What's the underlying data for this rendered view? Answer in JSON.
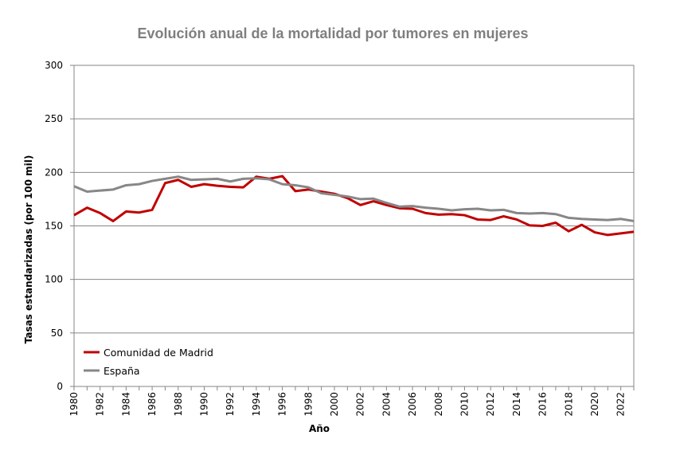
{
  "chart_data": {
    "type": "line",
    "title": "Evolución anual de la mortalidad por tumores en mujeres",
    "xlabel": "Año",
    "ylabel": "Tasas estandarizadas (por 100 mil)",
    "ylim": [
      0,
      300
    ],
    "yticks": [
      "0",
      "50",
      "100",
      "150",
      "200",
      "250",
      "300"
    ],
    "xlim": [
      1980,
      2023
    ],
    "xticks": [
      "1980",
      "1982",
      "1984",
      "1986",
      "1988",
      "1990",
      "1992",
      "1994",
      "1996",
      "1998",
      "2000",
      "2002",
      "2004",
      "2006",
      "2008",
      "2010",
      "2012",
      "2014",
      "2016",
      "2018",
      "2020",
      "2022"
    ],
    "grid": "horizontal",
    "legend_position": "bottom-left",
    "x": [
      1980,
      1981,
      1982,
      1983,
      1984,
      1985,
      1986,
      1987,
      1988,
      1989,
      1990,
      1991,
      1992,
      1993,
      1994,
      1995,
      1996,
      1997,
      1998,
      1999,
      2000,
      2001,
      2002,
      2003,
      2004,
      2005,
      2006,
      2007,
      2008,
      2009,
      2010,
      2011,
      2012,
      2013,
      2014,
      2015,
      2016,
      2017,
      2018,
      2019,
      2020,
      2021,
      2022,
      2023
    ],
    "series": [
      {
        "name": "Comunidad de Madrid",
        "color": "#c00000",
        "values": [
          160,
          167,
          162,
          154.5,
          163.5,
          162.5,
          165,
          190,
          193,
          186.5,
          189,
          187.5,
          186.5,
          186,
          196,
          194,
          196.5,
          182.5,
          184,
          182,
          180,
          176,
          169.5,
          173,
          169.5,
          166.5,
          166,
          162,
          160.5,
          161,
          160,
          156,
          155.5,
          159,
          156,
          150.5,
          150,
          153,
          145,
          151,
          144,
          141.5,
          143,
          144.5
        ]
      },
      {
        "name": "España",
        "color": "#878787",
        "values": [
          187,
          182,
          183,
          184,
          188,
          189,
          192,
          194,
          196,
          193,
          193.5,
          194,
          191.5,
          194,
          194.5,
          193.5,
          189,
          188,
          186,
          180.5,
          179,
          177.5,
          175,
          175.5,
          171.5,
          168,
          168.5,
          167,
          166,
          164.5,
          165.5,
          166,
          164.5,
          165,
          162,
          161.5,
          162,
          161,
          157.5,
          156.5,
          156,
          155.5,
          156.5,
          154.5
        ]
      }
    ]
  }
}
